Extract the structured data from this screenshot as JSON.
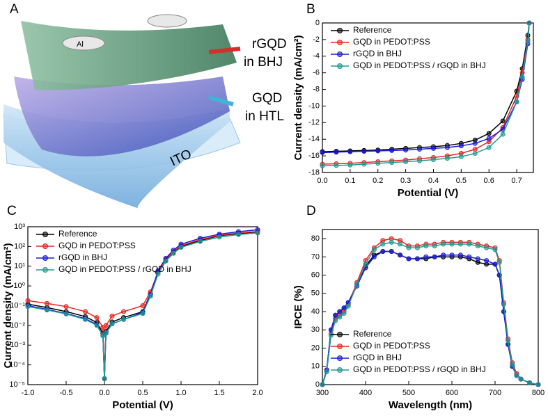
{
  "illustration": {
    "panel": "A",
    "labels": [
      "Al",
      "rGQD",
      "in BHJ",
      "GQD",
      "in HTL",
      "ITO"
    ]
  },
  "chart_data": [
    {
      "type": "line",
      "panel": "B",
      "xlabel": "Potential (V)",
      "ylabel": "Current density (mA/cm²)",
      "x": [
        0,
        0.05,
        0.1,
        0.15,
        0.2,
        0.25,
        0.3,
        0.35,
        0.4,
        0.45,
        0.5,
        0.55,
        0.6,
        0.65,
        0.7,
        0.72,
        0.74,
        0.745
      ],
      "series": [
        {
          "name": "Reference",
          "color": "#000000",
          "values": [
            -15.5,
            -15.45,
            -15.4,
            -15.35,
            -15.3,
            -15.2,
            -15.1,
            -15.0,
            -14.9,
            -14.75,
            -14.5,
            -14.1,
            -13.3,
            -11.8,
            -8.2,
            -5.5,
            -1.5,
            0
          ]
        },
        {
          "name": "GQD in PEDOT:PSS",
          "color": "#e8231f",
          "values": [
            -17.0,
            -16.95,
            -16.9,
            -16.8,
            -16.7,
            -16.6,
            -16.5,
            -16.35,
            -16.2,
            -16.0,
            -15.7,
            -15.2,
            -14.3,
            -12.6,
            -8.8,
            -6,
            -2,
            0
          ]
        },
        {
          "name": "rGQD in BHJ",
          "color": "#1a1ad6",
          "values": [
            -15.6,
            -15.55,
            -15.5,
            -15.45,
            -15.4,
            -15.35,
            -15.3,
            -15.2,
            -15.1,
            -15.0,
            -14.8,
            -14.5,
            -13.9,
            -12.8,
            -9.5,
            -6.8,
            -2.5,
            0
          ]
        },
        {
          "name": "GQD in PEDOT:PSS / rGQD in BHJ",
          "color": "#1f9a93",
          "values": [
            -17.2,
            -17.15,
            -17.1,
            -17.0,
            -16.9,
            -16.8,
            -16.7,
            -16.6,
            -16.45,
            -16.3,
            -16.1,
            -15.7,
            -15.0,
            -13.4,
            -9.5,
            -6.5,
            -2.2,
            0
          ]
        }
      ],
      "xlim": [
        0,
        0.76
      ],
      "ylim": [
        -18,
        0
      ],
      "xticks": [
        {
          "value": 0,
          "label": "0.0"
        },
        0.1,
        0.2,
        0.3,
        0.4,
        0.5,
        0.6,
        0.7
      ],
      "yticks": [
        -18,
        -16,
        -14,
        -12,
        -10,
        -8,
        -6,
        -4,
        -2,
        0
      ],
      "legend": "upper left",
      "log_y": false
    },
    {
      "type": "line",
      "panel": "C",
      "xlabel": "Potential (V)",
      "ylabel": "Current density (mA/cm²)",
      "x": [
        -1,
        -0.75,
        -0.5,
        -0.25,
        -0.1,
        -0.02,
        0,
        0.02,
        0.1,
        0.25,
        0.5,
        0.6,
        0.7,
        0.8,
        0.9,
        1.0,
        1.25,
        1.5,
        1.75,
        2.0
      ],
      "series": [
        {
          "name": "Reference",
          "color": "#000000",
          "values": [
            0.12,
            0.08,
            0.05,
            0.028,
            0.014,
            0.004,
            2e-05,
            0.005,
            0.015,
            0.025,
            0.05,
            0.4,
            5,
            20,
            50,
            100,
            200,
            350,
            450,
            550
          ]
        },
        {
          "name": "GQD in PEDOT:PSS",
          "color": "#e8231f",
          "values": [
            0.18,
            0.13,
            0.09,
            0.05,
            0.025,
            0.008,
            2e-05,
            0.01,
            0.03,
            0.05,
            0.1,
            0.5,
            5,
            22,
            55,
            110,
            220,
            370,
            480,
            580
          ]
        },
        {
          "name": "rGQD in BHJ",
          "color": "#1a1ad6",
          "values": [
            0.1,
            0.065,
            0.04,
            0.022,
            0.011,
            0.003,
            2e-05,
            0.004,
            0.012,
            0.02,
            0.045,
            0.35,
            6,
            25,
            65,
            130,
            260,
            420,
            560,
            700
          ]
        },
        {
          "name": "GQD in PEDOT:PSS / rGQD in BHJ",
          "color": "#1f9a93",
          "values": [
            0.09,
            0.06,
            0.038,
            0.02,
            0.01,
            0.003,
            2e-05,
            0.004,
            0.012,
            0.02,
            0.04,
            0.3,
            4,
            18,
            45,
            90,
            180,
            300,
            400,
            480
          ]
        }
      ],
      "xlim": [
        -1,
        2
      ],
      "ylim": [
        1e-05,
        1000
      ],
      "xticks": [
        {
          "value": -1,
          "label": "-1.0"
        },
        -0.5,
        {
          "value": 0,
          "label": "0.0"
        },
        0.5,
        {
          "value": 1,
          "label": "1.0"
        },
        1.5,
        {
          "value": 2,
          "label": "2.0"
        }
      ],
      "yticks": [
        {
          "value": 1e-05,
          "label": "10⁻⁵"
        },
        {
          "value": 0.0001,
          "label": "10⁻⁴"
        },
        {
          "value": 0.001,
          "label": "10⁻³"
        },
        {
          "value": 0.01,
          "label": "10⁻²"
        },
        {
          "value": 0.1,
          "label": "10⁻¹"
        },
        {
          "value": 1,
          "label": "10⁰"
        },
        {
          "value": 10,
          "label": "10¹"
        },
        {
          "value": 100,
          "label": "10²"
        },
        {
          "value": 1000,
          "label": "10³"
        }
      ],
      "legend": "upper left",
      "log_y": true
    },
    {
      "type": "line",
      "panel": "D",
      "xlabel": "Wavelength (nm)",
      "ylabel": "IPCE (%)",
      "x": [
        300,
        310,
        320,
        330,
        340,
        350,
        360,
        380,
        400,
        420,
        440,
        460,
        480,
        500,
        520,
        540,
        560,
        580,
        600,
        620,
        640,
        660,
        680,
        700,
        710,
        720,
        730,
        740,
        750,
        760,
        780,
        800
      ],
      "series": [
        {
          "name": "Reference",
          "color": "#000000",
          "values": [
            0,
            8,
            30,
            38,
            40,
            42,
            45,
            55,
            65,
            71,
            73,
            73,
            71,
            69,
            69,
            69,
            70,
            70,
            70,
            70,
            69,
            67,
            66,
            66,
            60,
            40,
            22,
            10,
            5,
            3,
            1,
            0
          ]
        },
        {
          "name": "GQD in PEDOT:PSS",
          "color": "#e8231f",
          "values": [
            0,
            8,
            28,
            36,
            38,
            40,
            44,
            56,
            68,
            75,
            79,
            80,
            79,
            76,
            76,
            77,
            77,
            78,
            78,
            78,
            78,
            77,
            76,
            75,
            68,
            45,
            25,
            12,
            6,
            3,
            1,
            0
          ]
        },
        {
          "name": "rGQD in BHJ",
          "color": "#1a1ad6",
          "values": [
            0,
            8,
            30,
            38,
            40,
            42,
            45,
            54,
            64,
            70,
            73,
            73,
            71,
            69,
            69,
            70,
            70,
            71,
            71,
            71,
            70,
            69,
            68,
            66,
            60,
            40,
            22,
            10,
            5,
            3,
            1,
            0
          ]
        },
        {
          "name": "GQD in PEDOT:PSS / rGQD in BHJ",
          "color": "#1f9a93",
          "values": [
            0,
            7,
            27,
            35,
            37,
            39,
            43,
            55,
            66,
            74,
            77,
            78,
            77,
            75,
            75,
            76,
            76,
            77,
            77,
            77,
            77,
            76,
            75,
            74,
            67,
            44,
            24,
            11,
            5,
            3,
            1,
            0
          ]
        }
      ],
      "xlim": [
        300,
        800
      ],
      "ylim": [
        0,
        85
      ],
      "xticks": [
        300,
        400,
        500,
        600,
        700,
        800
      ],
      "yticks": [
        0,
        10,
        20,
        30,
        40,
        50,
        60,
        70,
        80
      ],
      "legend": "lower left",
      "log_y": false
    }
  ]
}
